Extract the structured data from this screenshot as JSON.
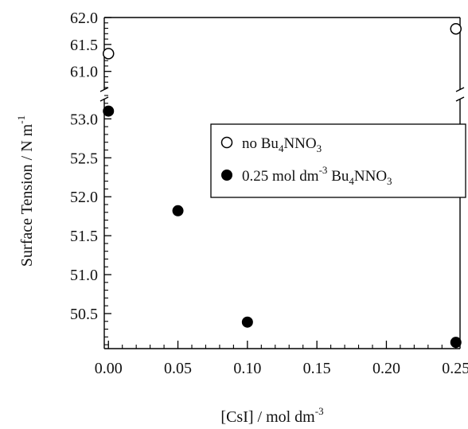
{
  "chart_data": {
    "type": "scatter",
    "xlabel": "[CsI] / mol dm",
    "xlabel_exponent": "-3",
    "ylabel": "Surface Tension / N m",
    "ylabel_exponent": "-1",
    "x_ticks": [
      "0.00",
      "0.05",
      "0.10",
      "0.15",
      "0.20",
      "0.25"
    ],
    "xlim": [
      -0.003,
      0.253
    ],
    "y_axis_break": true,
    "y_segments": [
      {
        "range": [
          60.7,
          62.0
        ],
        "ticks": [
          "61.0",
          "61.5",
          "62.0"
        ]
      },
      {
        "range": [
          50.05,
          53.3
        ],
        "ticks": [
          "50.5",
          "51.0",
          "51.5",
          "52.0",
          "52.5",
          "53.0"
        ]
      }
    ],
    "series": [
      {
        "name_prefix": "no Bu",
        "name_sub1": "4",
        "name_mid": "NNO",
        "name_sub2": "3",
        "marker": "open-circle",
        "color": "#000000",
        "points": [
          {
            "x": 0.0,
            "y": 61.33
          },
          {
            "x": 0.25,
            "y": 61.79
          }
        ]
      },
      {
        "name_prefix": "0.25 mol dm",
        "name_sup": "-3",
        "name_mid_prefix": " Bu",
        "name_sub1": "4",
        "name_mid": "NNO",
        "name_sub2": "3",
        "marker": "filled-circle",
        "color": "#000000",
        "points": [
          {
            "x": 0.0,
            "y": 53.1
          },
          {
            "x": 0.05,
            "y": 51.82
          },
          {
            "x": 0.1,
            "y": 50.39
          },
          {
            "x": 0.25,
            "y": 50.13
          }
        ]
      }
    ],
    "legend_position": "center-right",
    "grid": false
  }
}
